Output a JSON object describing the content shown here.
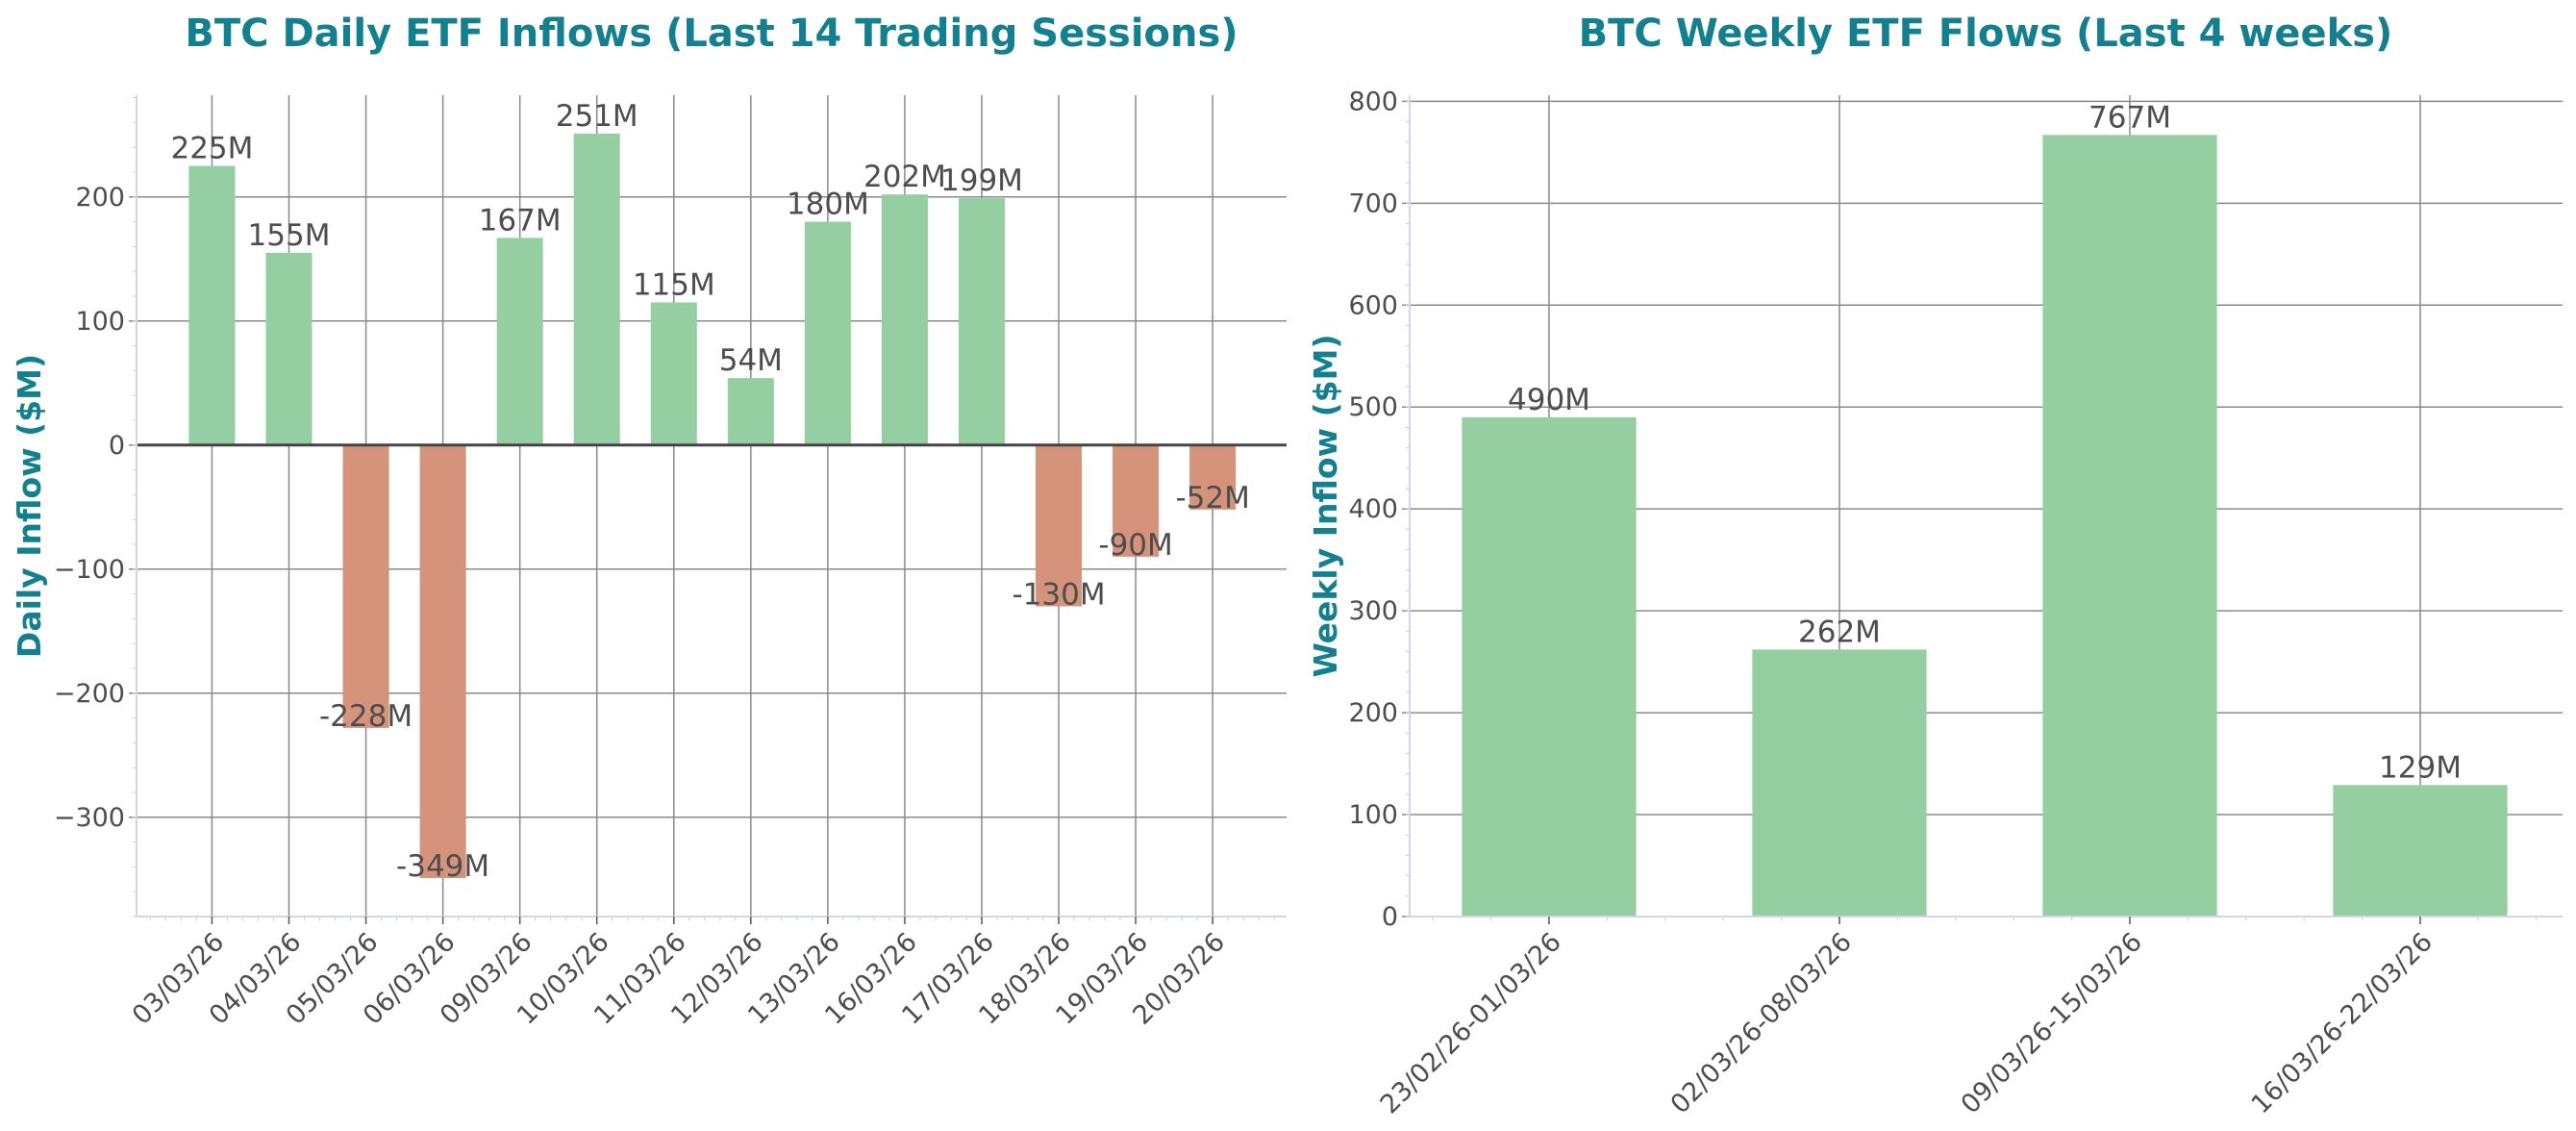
{
  "chart_data": [
    {
      "type": "bar",
      "title": "BTC Daily ETF Inflows (Last 14 Trading Sessions)",
      "xlabel": "",
      "ylabel": "Daily Inflow ($M)",
      "categories": [
        "03/03/26",
        "04/03/26",
        "05/03/26",
        "06/03/26",
        "09/03/26",
        "10/03/26",
        "11/03/26",
        "12/03/26",
        "13/03/26",
        "16/03/26",
        "17/03/26",
        "18/03/26",
        "19/03/26",
        "20/03/26"
      ],
      "values": [
        225,
        155,
        -228,
        -349,
        167,
        251,
        115,
        54,
        180,
        202,
        199,
        -130,
        -90,
        -52
      ],
      "data_labels": [
        "225M",
        "155M",
        "-228M",
        "-349M",
        "167M",
        "251M",
        "115M",
        "54M",
        "180M",
        "202M",
        "199M",
        "-130M",
        "-90M",
        "-52M"
      ],
      "ylim": [
        -380,
        282
      ],
      "yticks": [
        -300,
        -200,
        -100,
        0,
        100,
        200
      ],
      "ytick_labels": [
        "−300",
        "−200",
        "−100",
        "0",
        "100",
        "200"
      ],
      "grid": true,
      "colors": {
        "positive": "#95cea0",
        "negative": "#d6937c"
      }
    },
    {
      "type": "bar",
      "title": "BTC Weekly ETF Flows (Last 4 weeks)",
      "xlabel": "",
      "ylabel": "Weekly Inflow ($M)",
      "categories": [
        "23/02/26-01/03/26",
        "02/03/26-08/03/26",
        "09/03/26-15/03/26",
        "16/03/26-22/03/26"
      ],
      "values": [
        490,
        262,
        767,
        129
      ],
      "data_labels": [
        "490M",
        "262M",
        "767M",
        "129M"
      ],
      "ylim": [
        0,
        806
      ],
      "yticks": [
        0,
        100,
        200,
        300,
        400,
        500,
        600,
        700,
        800
      ],
      "ytick_labels": [
        "0",
        "100",
        "200",
        "300",
        "400",
        "500",
        "600",
        "700",
        "800"
      ],
      "grid": true,
      "colors": {
        "positive": "#95cea0",
        "negative": "#d6937c"
      }
    }
  ]
}
